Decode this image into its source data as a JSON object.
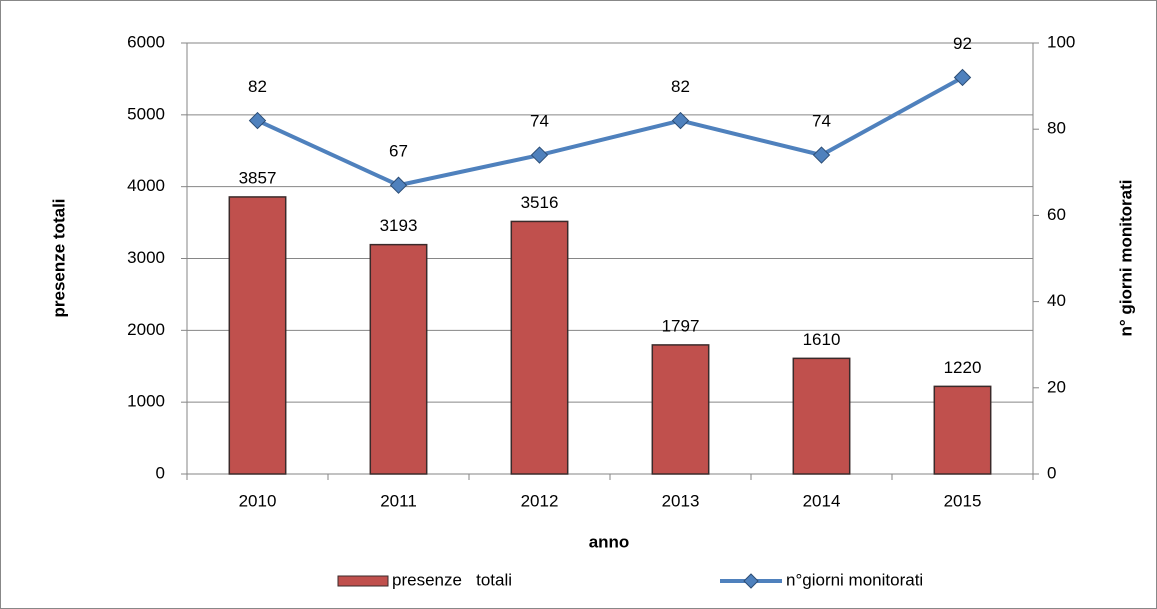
{
  "chart_data": {
    "type": "combo",
    "categories": [
      "2010",
      "2011",
      "2012",
      "2013",
      "2014",
      "2015"
    ],
    "x_label": "anno",
    "y_label": "presenze totali",
    "y2_label": "n° giorni monitorati",
    "ylim": [
      0,
      6000
    ],
    "yticks": [
      0,
      1000,
      2000,
      3000,
      4000,
      5000,
      6000
    ],
    "y2lim": [
      0,
      100
    ],
    "y2ticks": [
      0,
      20,
      40,
      60,
      80,
      100
    ],
    "grid": true,
    "legend": "bottom",
    "series": [
      {
        "name": "presenze   totali",
        "type": "bar",
        "color": "#c0504d",
        "values": [
          3857,
          3193,
          3516,
          1797,
          1610,
          1220
        ]
      },
      {
        "name": "n°giorni monitorati",
        "type": "line",
        "axis": "y2",
        "color": "#4f81bd",
        "values": [
          82,
          67,
          74,
          82,
          74,
          92
        ]
      }
    ]
  }
}
